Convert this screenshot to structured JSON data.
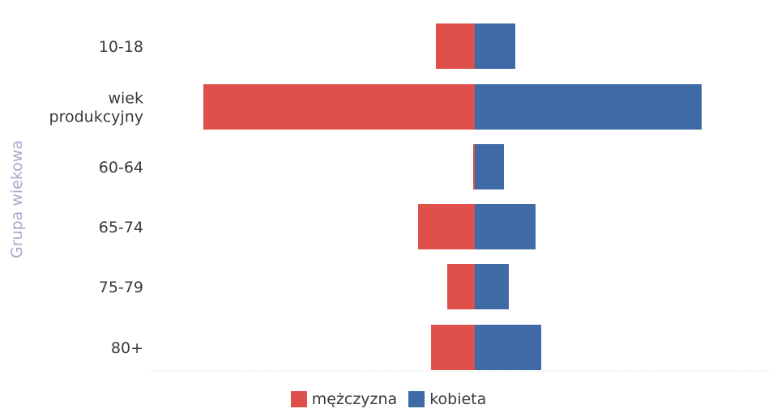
{
  "chart_data": {
    "type": "bar",
    "orientation": "horizontal",
    "stacked": "diverging",
    "categories": [
      "10-18",
      "wiek produkcyjny",
      "60-64",
      "65-74",
      "75-79",
      "80+"
    ],
    "category_lines": [
      [
        "10-18"
      ],
      [
        "wiek",
        "produkcyjny"
      ],
      [
        "60-64"
      ],
      [
        "65-74"
      ],
      [
        "75-79"
      ],
      [
        "80+"
      ]
    ],
    "series": [
      {
        "name": "mężczyzna",
        "color": "#e0504a",
        "direction": "left",
        "values": [
          48,
          335,
          2,
          70,
          34,
          54
        ]
      },
      {
        "name": "kobieta",
        "color": "#3e6aa5",
        "direction": "right",
        "values": [
          50,
          280,
          36,
          75,
          42,
          82
        ]
      }
    ],
    "ylabel": "Grupa wiekowa",
    "xlabel": "",
    "grid": false,
    "legend_position": "bottom-center"
  }
}
